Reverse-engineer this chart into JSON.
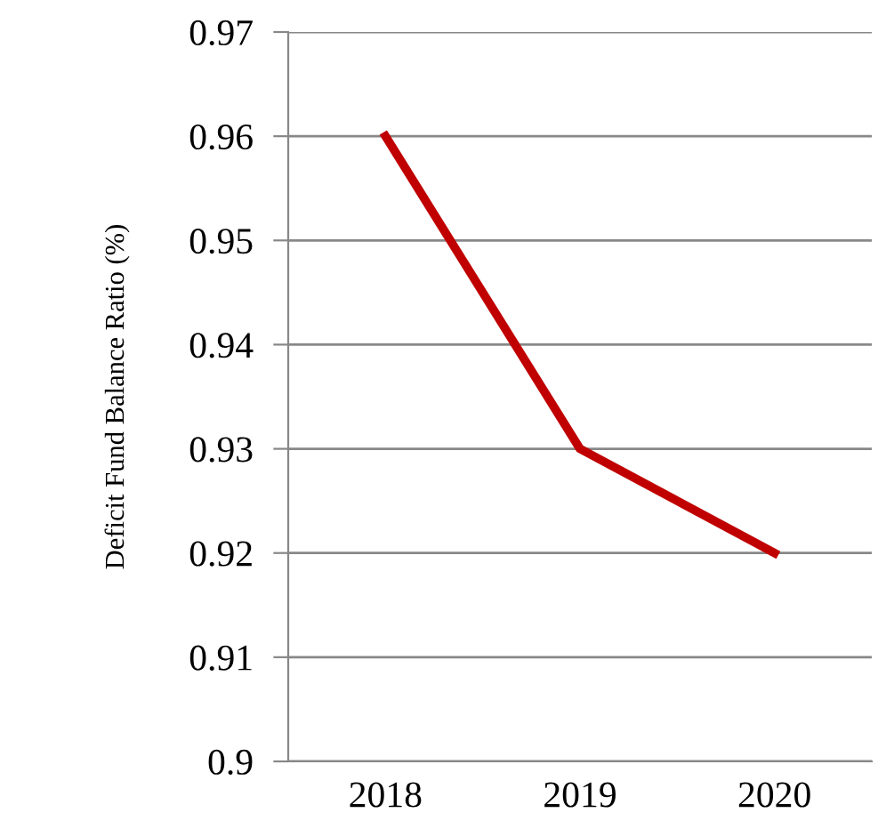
{
  "chart_data": {
    "type": "line",
    "categories": [
      "2018",
      "2019",
      "2020"
    ],
    "series": [
      {
        "color": "#c00000",
        "values": [
          0.96,
          0.93,
          0.92
        ]
      }
    ],
    "ylabel": "Deficit Fund Balance Ratio (%)",
    "ylim": [
      0.9,
      0.97
    ],
    "yticks": [
      {
        "value": 0.9,
        "label": "0.9"
      },
      0.91,
      0.92,
      0.93,
      0.94,
      0.95,
      0.96,
      0.97
    ],
    "grid": "y",
    "marker": "none",
    "line_style": "solid",
    "legend": false
  }
}
